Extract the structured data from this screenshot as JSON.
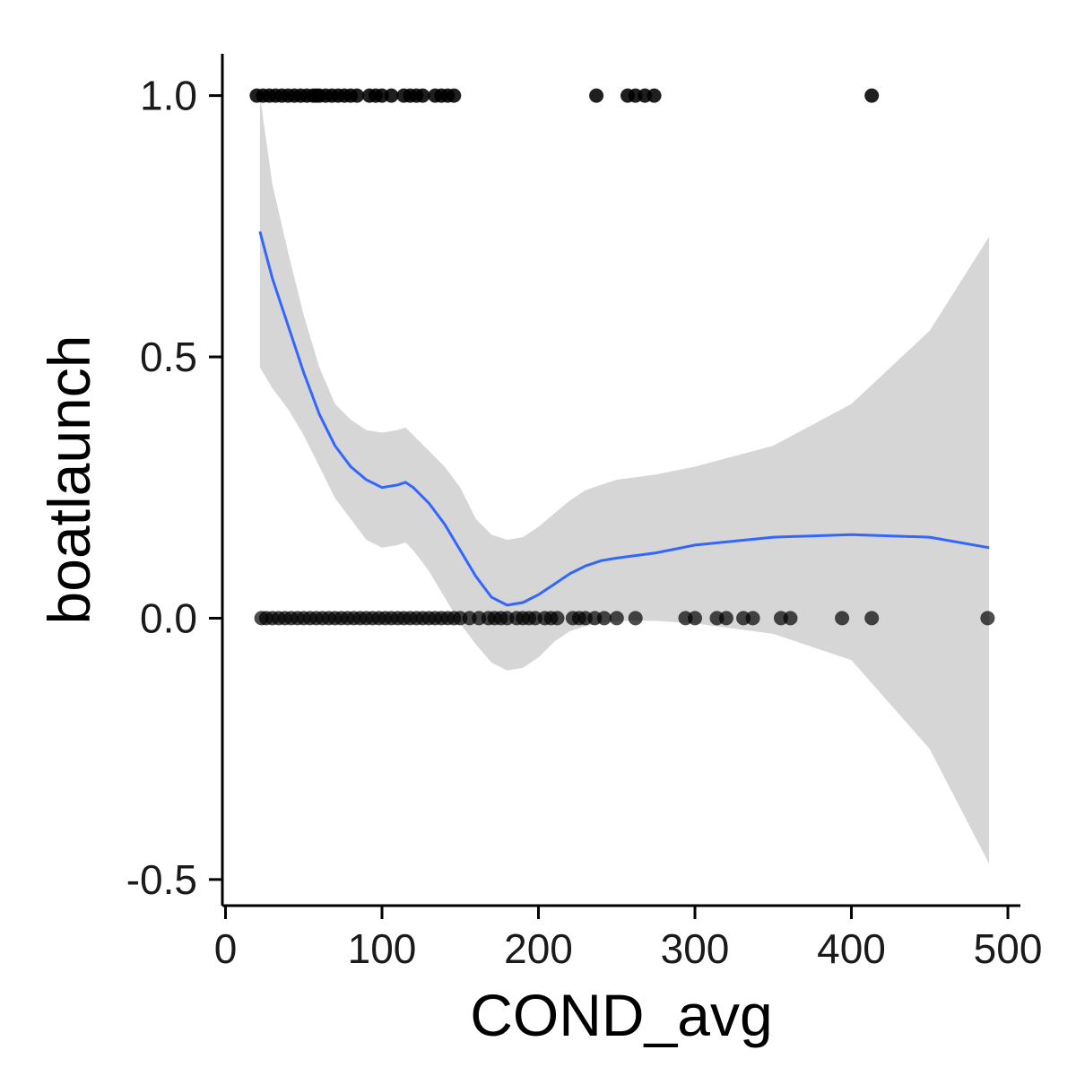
{
  "chart_data": {
    "type": "scatter",
    "title": "",
    "xlabel": "COND_avg",
    "ylabel": "boatlaunch",
    "xlim": [
      -2,
      508
    ],
    "ylim": [
      -0.55,
      1.08
    ],
    "x_ticks": [
      0,
      100,
      200,
      300,
      400,
      500
    ],
    "x_tick_labels": [
      "0",
      "100",
      "200",
      "300",
      "400",
      "500"
    ],
    "y_ticks": [
      -0.5,
      0.0,
      0.5,
      1.0
    ],
    "y_tick_labels": [
      "-0.5",
      "0.0",
      "0.5",
      "1.0"
    ],
    "grid": false,
    "legend": "none",
    "colors": {
      "points": "#000000",
      "smooth_line": "#3366ff",
      "confidence_band": "#d6d6d6",
      "axes": "#000000"
    },
    "points": {
      "y1_x": [
        20,
        24,
        28,
        32,
        36,
        40,
        44,
        48,
        52,
        56,
        58,
        60,
        64,
        68,
        72,
        76,
        80,
        84,
        92,
        96,
        100,
        106,
        114,
        118,
        122,
        126,
        134,
        138,
        142,
        146,
        237,
        257,
        262,
        268,
        274,
        413
      ],
      "y0_x": [
        23,
        26,
        30,
        34,
        38,
        42,
        46,
        50,
        54,
        58,
        62,
        66,
        70,
        74,
        78,
        82,
        86,
        90,
        94,
        98,
        102,
        106,
        110,
        114,
        118,
        122,
        126,
        130,
        134,
        138,
        142,
        146,
        150,
        156,
        162,
        168,
        172,
        176,
        180,
        186,
        190,
        194,
        198,
        204,
        208,
        212,
        222,
        226,
        230,
        236,
        242,
        250,
        262,
        294,
        300,
        314,
        320,
        331,
        337,
        355,
        361,
        394,
        413,
        487
      ]
    },
    "series": [
      {
        "type": "smooth",
        "x": [
          22,
          30,
          40,
          50,
          60,
          70,
          80,
          90,
          100,
          110,
          115,
          120,
          130,
          140,
          150,
          160,
          170,
          180,
          190,
          200,
          210,
          220,
          230,
          240,
          250,
          275,
          300,
          350,
          400,
          450,
          488
        ],
        "y": [
          0.74,
          0.65,
          0.56,
          0.47,
          0.39,
          0.33,
          0.29,
          0.265,
          0.25,
          0.255,
          0.26,
          0.25,
          0.22,
          0.18,
          0.13,
          0.08,
          0.04,
          0.025,
          0.03,
          0.045,
          0.065,
          0.085,
          0.1,
          0.11,
          0.115,
          0.125,
          0.14,
          0.155,
          0.16,
          0.155,
          0.135
        ],
        "lower": [
          0.48,
          0.44,
          0.4,
          0.35,
          0.29,
          0.23,
          0.19,
          0.15,
          0.135,
          0.14,
          0.145,
          0.13,
          0.09,
          0.04,
          -0.01,
          -0.05,
          -0.085,
          -0.1,
          -0.095,
          -0.075,
          -0.045,
          -0.025,
          -0.015,
          -0.01,
          -0.005,
          -0.005,
          -0.01,
          -0.03,
          -0.08,
          -0.25,
          -0.47
        ],
        "upper": [
          1.0,
          0.83,
          0.7,
          0.58,
          0.48,
          0.41,
          0.38,
          0.36,
          0.355,
          0.36,
          0.365,
          0.35,
          0.32,
          0.29,
          0.25,
          0.19,
          0.16,
          0.15,
          0.155,
          0.175,
          0.2,
          0.225,
          0.245,
          0.255,
          0.265,
          0.275,
          0.29,
          0.33,
          0.41,
          0.55,
          0.73
        ]
      }
    ]
  }
}
